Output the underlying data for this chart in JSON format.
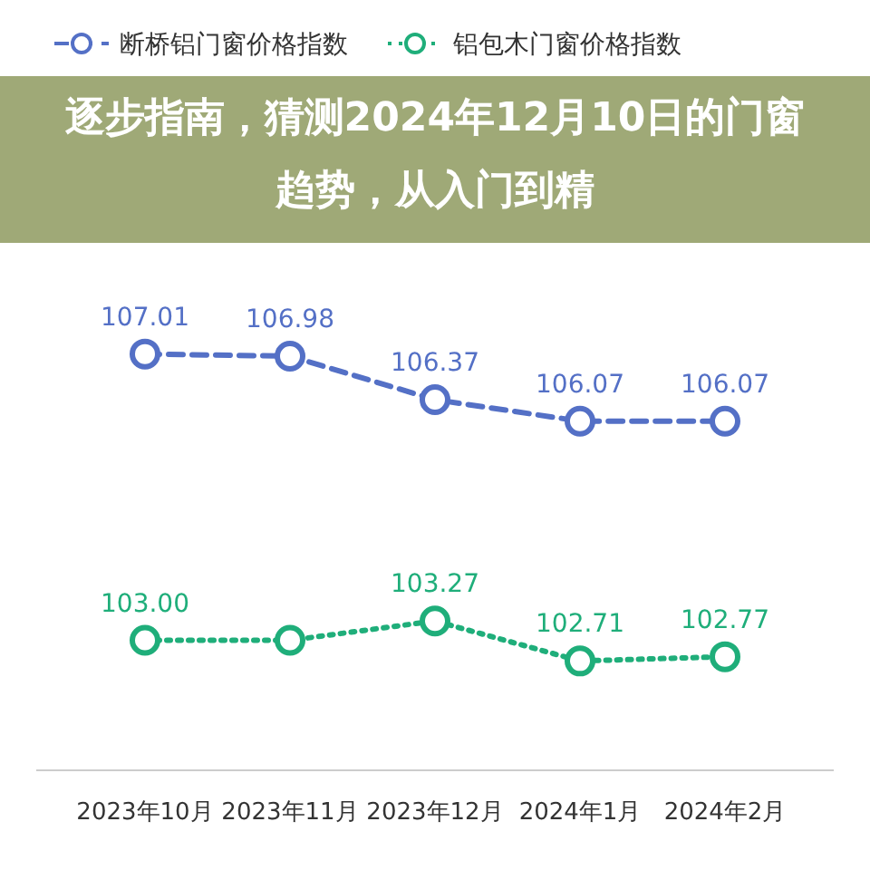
{
  "chart_data": {
    "type": "line",
    "title": "逐步指南，猜测2024年12月10日的门窗趋势，从入门到精",
    "categories": [
      "2023年10月",
      "2023年11月",
      "2023年12月",
      "2024年1月",
      "2024年2月"
    ],
    "marker": "circle",
    "legend": "top",
    "series": [
      {
        "name": "断桥铝门窗价格指数",
        "color": "#5470c6",
        "line_style": "dashed",
        "values": [
          107.01,
          106.98,
          106.37,
          106.07,
          106.07
        ],
        "value_labels": [
          "107.01",
          "106.98",
          "106.37",
          "106.07",
          "106.07"
        ]
      },
      {
        "name": "铝包木门窗价格指数",
        "color": "#1fae7a",
        "line_style": "dotted",
        "values": [
          103.0,
          103.0,
          103.27,
          102.71,
          102.77
        ],
        "value_labels": [
          "103.00",
          null,
          "103.27",
          "102.71",
          "102.77"
        ]
      }
    ]
  }
}
